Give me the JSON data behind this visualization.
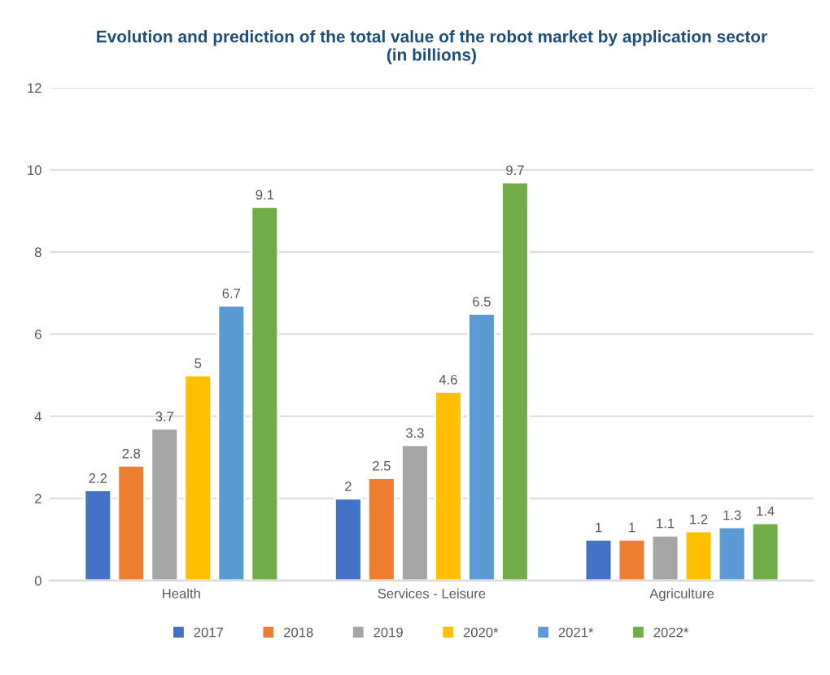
{
  "chart_data": {
    "type": "bar",
    "title": "Evolution and prediction of the total value of the robot market by application sector\n(in billions)",
    "categories": [
      "Health",
      "Services - Leisure",
      "Agriculture"
    ],
    "series": [
      {
        "name": "2017",
        "color": "#4472c4",
        "values": [
          2.2,
          2,
          1
        ]
      },
      {
        "name": "2018",
        "color": "#ed7d31",
        "values": [
          2.8,
          2.5,
          1
        ]
      },
      {
        "name": "2019",
        "color": "#a5a5a5",
        "values": [
          3.7,
          3.3,
          1.1
        ]
      },
      {
        "name": "2020*",
        "color": "#ffc000",
        "values": [
          5,
          4.6,
          1.2
        ]
      },
      {
        "name": "2021*",
        "color": "#5b9bd5",
        "values": [
          6.7,
          6.5,
          1.3
        ]
      },
      {
        "name": "2022*",
        "color": "#70ad47",
        "values": [
          9.1,
          9.7,
          1.4
        ]
      }
    ],
    "ylim": [
      0,
      12
    ],
    "yticks": [
      0,
      2,
      4,
      6,
      8,
      10,
      12
    ],
    "grid": "y",
    "legend": "bottom",
    "data_labels": true
  }
}
